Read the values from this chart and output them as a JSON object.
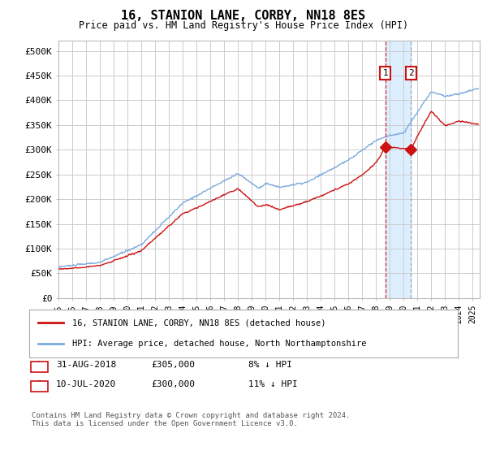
{
  "title": "16, STANION LANE, CORBY, NN18 8ES",
  "subtitle": "Price paid vs. HM Land Registry's House Price Index (HPI)",
  "ylabel_ticks": [
    "£0",
    "£50K",
    "£100K",
    "£150K",
    "£200K",
    "£250K",
    "£300K",
    "£350K",
    "£400K",
    "£450K",
    "£500K"
  ],
  "ytick_vals": [
    0,
    50000,
    100000,
    150000,
    200000,
    250000,
    300000,
    350000,
    400000,
    450000,
    500000
  ],
  "ylim": [
    0,
    520000
  ],
  "xlim_start": 1995.0,
  "xlim_end": 2025.5,
  "hpi_color": "#7aaadd",
  "price_color": "#cc1111",
  "sale1_date": 2018.67,
  "sale1_price": 305000,
  "sale2_date": 2020.53,
  "sale2_price": 300000,
  "sale1_label": "1",
  "sale2_label": "2",
  "legend_line1": "16, STANION LANE, CORBY, NN18 8ES (detached house)",
  "legend_line2": "HPI: Average price, detached house, North Northamptonshire",
  "footer": "Contains HM Land Registry data © Crown copyright and database right 2024.\nThis data is licensed under the Open Government Licence v3.0.",
  "background_color": "#ffffff",
  "grid_color": "#cccccc",
  "highlight_color": "#ddeeff"
}
